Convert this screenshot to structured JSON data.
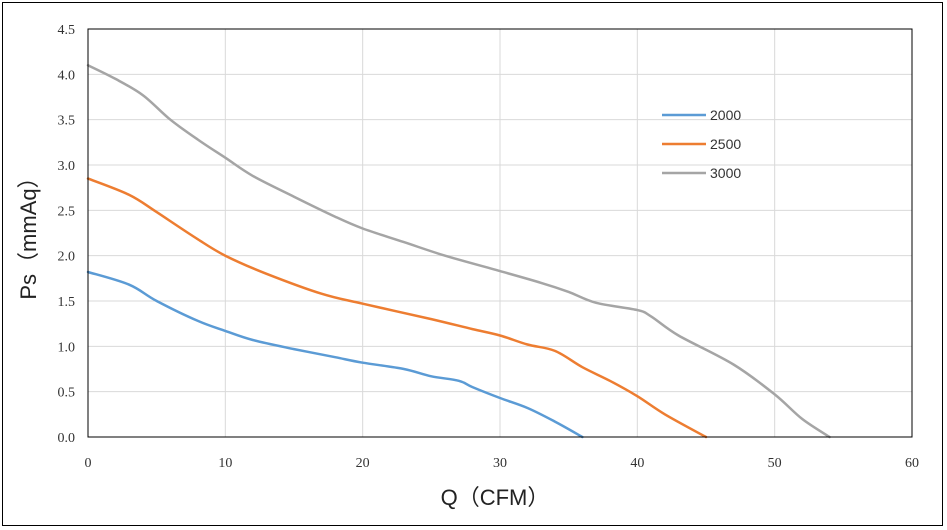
{
  "chart_data": {
    "type": "line",
    "title": "",
    "xlabel": "Q（CFM）",
    "ylabel": "Ps（mmAq）",
    "xlim": [
      0,
      60
    ],
    "ylim": [
      0,
      4.5
    ],
    "xticks": [
      "0",
      "10",
      "20",
      "30",
      "40",
      "50",
      "60"
    ],
    "yticks": [
      "0.0",
      "0.5",
      "1.0",
      "1.5",
      "2.0",
      "2.5",
      "3.0",
      "3.5",
      "4.0",
      "4.5"
    ],
    "grid": true,
    "legend_position": "right",
    "series": [
      {
        "name": "2000",
        "color": "#5B9BD5",
        "x": [
          0,
          3,
          5,
          8,
          10,
          12,
          15,
          18,
          20,
          23,
          25,
          27,
          28,
          30,
          32,
          34,
          36
        ],
        "y": [
          1.82,
          1.68,
          1.5,
          1.28,
          1.17,
          1.07,
          0.97,
          0.88,
          0.82,
          0.75,
          0.67,
          0.62,
          0.55,
          0.43,
          0.32,
          0.17,
          0.0
        ]
      },
      {
        "name": "2500",
        "color": "#ED7D31",
        "x": [
          0,
          3,
          5,
          8,
          10,
          13,
          17,
          20,
          25,
          28,
          30,
          32,
          34,
          36,
          38,
          40,
          42,
          45
        ],
        "y": [
          2.85,
          2.67,
          2.48,
          2.18,
          2.0,
          1.8,
          1.58,
          1.47,
          1.3,
          1.19,
          1.12,
          1.02,
          0.95,
          0.77,
          0.62,
          0.45,
          0.25,
          0.0
        ]
      },
      {
        "name": "3000",
        "color": "#A5A5A5",
        "x": [
          0,
          2,
          4,
          6,
          8,
          10,
          12,
          15,
          18,
          20,
          23,
          26,
          30,
          33,
          35,
          37,
          40,
          41,
          43,
          47,
          50,
          52,
          54
        ],
        "y": [
          4.1,
          3.95,
          3.77,
          3.5,
          3.28,
          3.08,
          2.88,
          2.65,
          2.43,
          2.3,
          2.15,
          2.0,
          1.83,
          1.7,
          1.6,
          1.48,
          1.4,
          1.33,
          1.12,
          0.8,
          0.47,
          0.2,
          0.0
        ]
      }
    ]
  }
}
